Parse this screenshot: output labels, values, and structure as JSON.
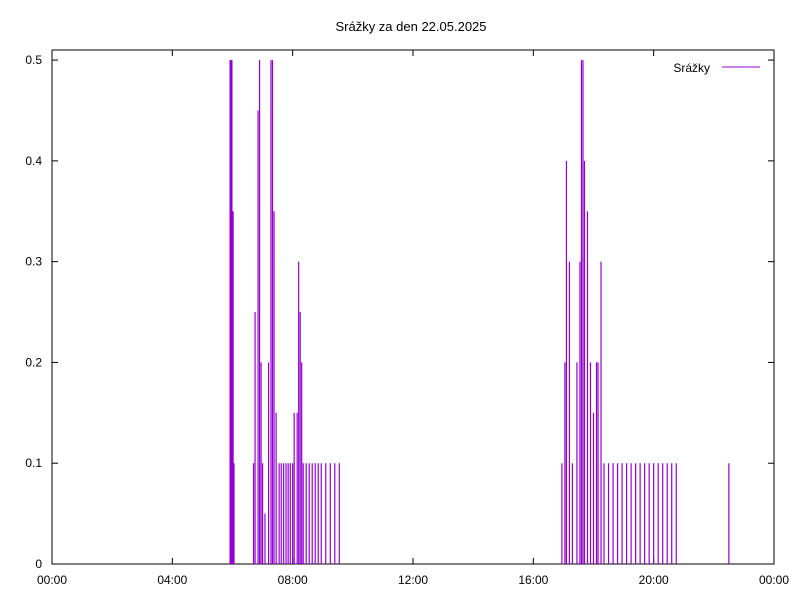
{
  "chart_data": {
    "type": "line",
    "title": "Srážky za den 22.05.2025",
    "xlabel": "",
    "ylabel": "",
    "x_unit": "hours",
    "xlim": [
      0,
      24
    ],
    "ylim": [
      0,
      0.51
    ],
    "x_ticks": [
      {
        "value": 0,
        "label": "00:00"
      },
      {
        "value": 4,
        "label": "04:00"
      },
      {
        "value": 8,
        "label": "08:00"
      },
      {
        "value": 12,
        "label": "12:00"
      },
      {
        "value": 16,
        "label": "16:00"
      },
      {
        "value": 20,
        "label": "20:00"
      },
      {
        "value": 24,
        "label": "00:00"
      }
    ],
    "y_ticks": [
      {
        "value": 0,
        "label": "0"
      },
      {
        "value": 0.1,
        "label": "0.1"
      },
      {
        "value": 0.2,
        "label": "0.2"
      },
      {
        "value": 0.3,
        "label": "0.3"
      },
      {
        "value": 0.4,
        "label": "0.4"
      },
      {
        "value": 0.5,
        "label": "0.5"
      }
    ],
    "grid": false,
    "legend": "top-right",
    "series": [
      {
        "name": "Srážky",
        "color": "#9400d3",
        "x": [
          5.92,
          5.95,
          5.98,
          6.02,
          6.05,
          6.7,
          6.75,
          6.85,
          6.9,
          6.95,
          7.0,
          7.08,
          7.2,
          7.28,
          7.33,
          7.38,
          7.45,
          7.55,
          7.62,
          7.7,
          7.78,
          7.85,
          7.92,
          8.0,
          8.05,
          8.15,
          8.2,
          8.25,
          8.3,
          8.35,
          8.45,
          8.55,
          8.65,
          8.75,
          8.85,
          8.95,
          9.1,
          9.25,
          9.4,
          9.55,
          16.95,
          17.05,
          17.1,
          17.2,
          17.3,
          17.45,
          17.55,
          17.6,
          17.65,
          17.7,
          17.8,
          17.9,
          18.0,
          18.1,
          18.15,
          18.25,
          18.35,
          18.5,
          18.65,
          18.8,
          18.95,
          19.1,
          19.25,
          19.4,
          19.55,
          19.7,
          19.85,
          20.0,
          20.15,
          20.3,
          20.45,
          20.6,
          20.75,
          22.5
        ],
        "values": [
          0.5,
          0.5,
          0.5,
          0.35,
          0.1,
          0.1,
          0.25,
          0.45,
          0.5,
          0.2,
          0.1,
          0.05,
          0.2,
          0.5,
          0.5,
          0.35,
          0.15,
          0.1,
          0.1,
          0.1,
          0.1,
          0.1,
          0.1,
          0.1,
          0.15,
          0.15,
          0.3,
          0.25,
          0.2,
          0.1,
          0.1,
          0.1,
          0.1,
          0.1,
          0.1,
          0.1,
          0.1,
          0.1,
          0.1,
          0.1,
          0.1,
          0.2,
          0.4,
          0.3,
          0.1,
          0.2,
          0.3,
          0.5,
          0.5,
          0.4,
          0.35,
          0.2,
          0.15,
          0.2,
          0.2,
          0.3,
          0.1,
          0.1,
          0.1,
          0.1,
          0.1,
          0.1,
          0.1,
          0.1,
          0.1,
          0.1,
          0.1,
          0.1,
          0.1,
          0.1,
          0.1,
          0.1,
          0.1,
          0.1
        ]
      }
    ]
  }
}
